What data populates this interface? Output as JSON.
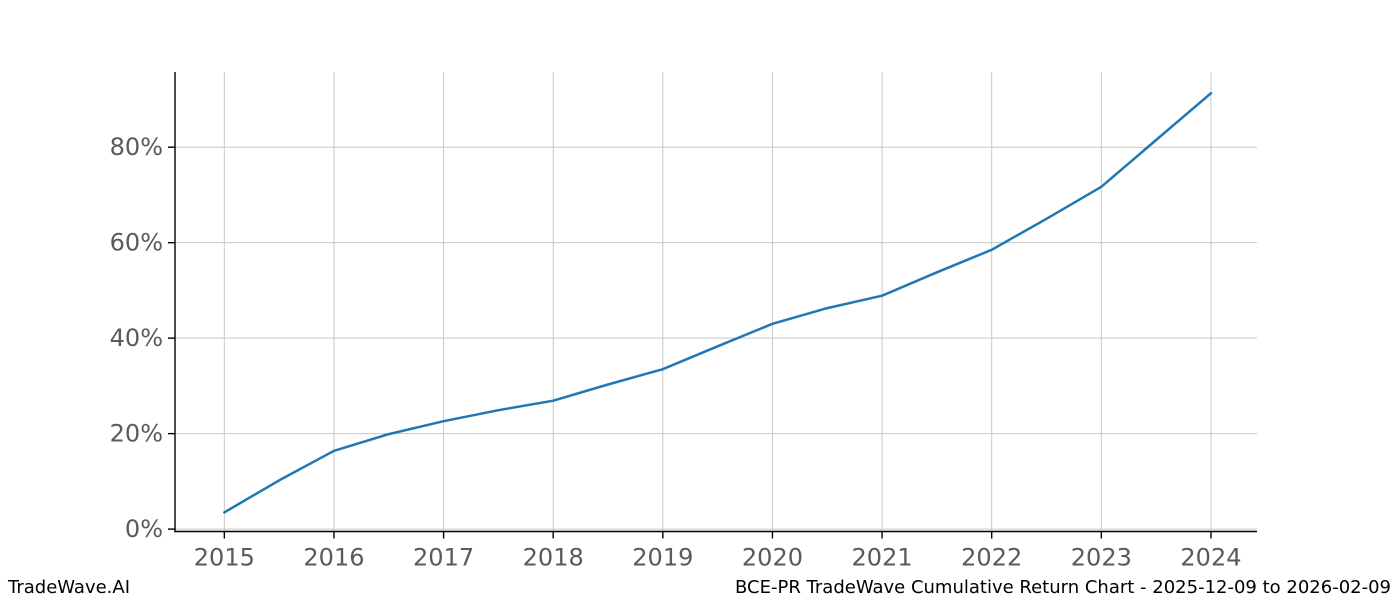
{
  "chart_data": {
    "type": "line",
    "title": "",
    "xlabel": "",
    "ylabel": "",
    "grid": true,
    "legend": null,
    "xlim": [
      2014.55,
      2024.42
    ],
    "ylim": [
      -0.5,
      95.75
    ],
    "x_tick_values": [
      2015,
      2016,
      2017,
      2018,
      2019,
      2020,
      2021,
      2022,
      2023,
      2024
    ],
    "x_tick_labels": [
      "2015",
      "2016",
      "2017",
      "2018",
      "2019",
      "2020",
      "2021",
      "2022",
      "2023",
      "2024"
    ],
    "y_tick_values": [
      0,
      20,
      40,
      60,
      80
    ],
    "y_tick_labels": [
      "0%",
      "20%",
      "40%",
      "60%",
      "80%"
    ],
    "colors": {
      "line": "#1f77b4",
      "grid": "#c8c8c8",
      "axis": "#000000",
      "tick_label": "#5a5a5a",
      "background": "#ffffff"
    },
    "series": [
      {
        "name": "BCE-PR cumulative return",
        "color": "#1f77b4",
        "x": [
          2015,
          2015.5,
          2016,
          2016.5,
          2017,
          2017.5,
          2018,
          2018.5,
          2019,
          2019.5,
          2020,
          2020.5,
          2021,
          2021.5,
          2022,
          2022.5,
          2023,
          2023.5,
          2024
        ],
        "y": [
          3.5,
          10.2,
          16.4,
          19.9,
          22.6,
          24.9,
          26.9,
          30.3,
          33.5,
          38.3,
          43.0,
          46.3,
          48.9,
          53.8,
          58.5,
          65.0,
          71.7,
          81.5,
          91.3
        ]
      }
    ]
  },
  "footer": {
    "brand": "TradeWave.AI",
    "title": "BCE-PR TradeWave Cumulative Return Chart - 2025-12-09 to 2026-02-09"
  }
}
